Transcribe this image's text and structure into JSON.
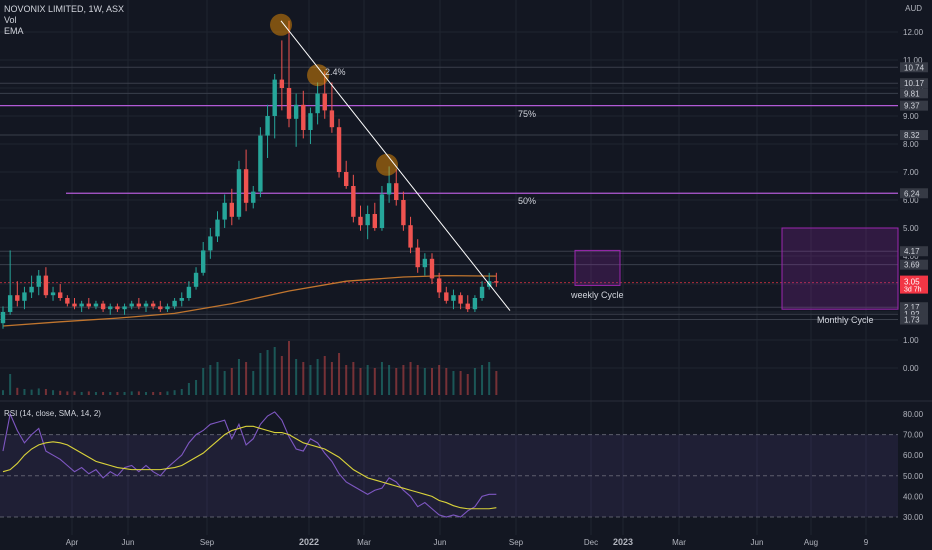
{
  "header": {
    "title": "NOVONIX LIMITED, 1W, ASX",
    "indicators": [
      "Vol",
      "EMA"
    ],
    "currency": "AUD"
  },
  "rsi_legend": "RSI (14, close, SMA, 14, 2)",
  "colors": {
    "background": "#131722",
    "grid": "#1f2430",
    "candle_up": "#26a69a",
    "candle_down": "#ef5350",
    "ema": "#c0752e",
    "level_line": "#b25ad6",
    "trend_line": "#ffffff",
    "rsi_line": "#7e57c2",
    "rsi_sma": "#d9d23a",
    "price_tag": "#f23645",
    "axis_text": "#b2b5be"
  },
  "chart_data": {
    "type": "candlestick",
    "timeframe": "1W",
    "x_ticks": [
      "Apr",
      "Jun",
      "Sep",
      "2022",
      "Mar",
      "Jun",
      "Sep",
      "Dec",
      "2023",
      "Mar",
      "Jun",
      "Aug",
      "9"
    ],
    "price_axis_ticks": [
      "12.00",
      "11.00",
      "10.00",
      "9.00",
      "8.00",
      "7.00",
      "6.00",
      "5.00",
      "4.00",
      "3.00",
      "2.00",
      "1.00",
      "0.00"
    ],
    "price_tags": [
      {
        "label": "10.74",
        "value": 10.74
      },
      {
        "label": "10.17",
        "value": 10.17
      },
      {
        "label": "9.81",
        "value": 9.81
      },
      {
        "label": "9.37",
        "value": 9.37
      },
      {
        "label": "8.32",
        "value": 8.32
      },
      {
        "label": "6.24",
        "value": 6.24
      },
      {
        "label": "4.17",
        "value": 4.17
      },
      {
        "label": "3.69",
        "value": 3.69
      },
      {
        "label": "2.17",
        "value": 2.17
      },
      {
        "label": "1.92",
        "value": 1.92
      },
      {
        "label": "1.73",
        "value": 1.73
      }
    ],
    "current_price": {
      "label": "3.05",
      "countdown": "3d 7h",
      "value": 3.05
    },
    "horizontal_levels": [
      {
        "value": 10.74,
        "color": "#3a3f4b"
      },
      {
        "value": 10.17,
        "color": "#3a3f4b"
      },
      {
        "value": 9.81,
        "color": "#3a3f4b"
      },
      {
        "value": 9.37,
        "color": "#b25ad6"
      },
      {
        "value": 8.32,
        "color": "#3a3f4b"
      },
      {
        "value": 6.24,
        "color": "#b25ad6"
      },
      {
        "value": 4.17,
        "color": "#3a3f4b"
      },
      {
        "value": 3.69,
        "color": "#3a3f4b"
      },
      {
        "value": 2.17,
        "color": "#3a3f4b"
      },
      {
        "value": 1.92,
        "color": "#3a3f4b"
      },
      {
        "value": 1.73,
        "color": "#3a3f4b"
      }
    ],
    "annotations": [
      {
        "text": "2.4%",
        "x": "Dec 2021",
        "y": 10.5
      },
      {
        "text": "75%",
        "x": "Jul 2022",
        "y": 8.9
      },
      {
        "text": "50%",
        "x": "Jul 2022",
        "y": 5.9
      },
      {
        "text": "weekly Cycle",
        "x": "Sep 2022",
        "y": 2.6
      },
      {
        "text": "Monthly Cycle",
        "x": "Jul 2023",
        "y": 1.95
      }
    ],
    "cycle_boxes": [
      {
        "name": "weekly Cycle",
        "x_start": "Sep 2022",
        "x_end": "Oct 2022",
        "y_low": 2.95,
        "y_high": 4.2
      },
      {
        "name": "Monthly Cycle",
        "x_start": "Jul 2023",
        "x_end": "Sep 2023",
        "y_low": 2.1,
        "y_high": 5.0
      }
    ],
    "trend_line": {
      "from": {
        "x": "Nov 2021",
        "y": 12.4
      },
      "to": {
        "x": "Aug 2022",
        "y": 2.05
      }
    },
    "pivot_highs": [
      {
        "x": "Nov 2021",
        "y": 12.4
      },
      {
        "x": "Jan 2022",
        "y": 10.6
      },
      {
        "x": "Mar 2022",
        "y": 7.4
      }
    ],
    "ohlc": [
      [
        1.6,
        2.2,
        1.4,
        2.0
      ],
      [
        2.0,
        4.2,
        1.9,
        2.6
      ],
      [
        2.6,
        3.1,
        2.2,
        2.4
      ],
      [
        2.4,
        2.9,
        2.1,
        2.7
      ],
      [
        2.7,
        3.3,
        2.5,
        2.9
      ],
      [
        2.9,
        3.5,
        2.6,
        3.3
      ],
      [
        3.3,
        3.6,
        2.5,
        2.6
      ],
      [
        2.6,
        2.9,
        2.4,
        2.7
      ],
      [
        2.7,
        3.0,
        2.4,
        2.5
      ],
      [
        2.5,
        2.6,
        2.2,
        2.3
      ],
      [
        2.3,
        2.5,
        2.1,
        2.2
      ],
      [
        2.2,
        2.4,
        2.0,
        2.3
      ],
      [
        2.3,
        2.5,
        2.1,
        2.2
      ],
      [
        2.2,
        2.4,
        2.1,
        2.3
      ],
      [
        2.3,
        2.4,
        2.0,
        2.1
      ],
      [
        2.1,
        2.3,
        1.9,
        2.2
      ],
      [
        2.2,
        2.3,
        2.0,
        2.1
      ],
      [
        2.1,
        2.3,
        1.9,
        2.2
      ],
      [
        2.2,
        2.4,
        2.1,
        2.3
      ],
      [
        2.3,
        2.5,
        2.1,
        2.2
      ],
      [
        2.2,
        2.4,
        2.0,
        2.3
      ],
      [
        2.3,
        2.4,
        2.1,
        2.2
      ],
      [
        2.2,
        2.4,
        2.0,
        2.1
      ],
      [
        2.1,
        2.3,
        2.0,
        2.2
      ],
      [
        2.2,
        2.5,
        2.1,
        2.4
      ],
      [
        2.4,
        2.7,
        2.2,
        2.5
      ],
      [
        2.5,
        3.1,
        2.4,
        2.9
      ],
      [
        2.9,
        3.6,
        2.8,
        3.4
      ],
      [
        3.4,
        4.5,
        3.3,
        4.2
      ],
      [
        4.2,
        5.0,
        3.9,
        4.7
      ],
      [
        4.7,
        5.6,
        4.5,
        5.3
      ],
      [
        5.3,
        6.2,
        5.0,
        5.9
      ],
      [
        5.9,
        6.4,
        5.1,
        5.4
      ],
      [
        5.4,
        7.4,
        5.3,
        7.1
      ],
      [
        7.1,
        7.8,
        5.6,
        5.9
      ],
      [
        5.9,
        6.5,
        5.7,
        6.3
      ],
      [
        6.3,
        8.6,
        6.1,
        8.3
      ],
      [
        8.3,
        9.4,
        7.5,
        9.0
      ],
      [
        9.0,
        10.5,
        8.2,
        10.3
      ],
      [
        10.3,
        11.7,
        9.2,
        10.0
      ],
      [
        10.0,
        12.4,
        8.6,
        8.9
      ],
      [
        8.9,
        9.8,
        7.9,
        9.4
      ],
      [
        9.4,
        9.9,
        8.2,
        8.5
      ],
      [
        8.5,
        9.3,
        8.0,
        9.1
      ],
      [
        9.1,
        10.2,
        8.7,
        9.8
      ],
      [
        9.8,
        10.6,
        8.9,
        9.2
      ],
      [
        9.2,
        10.2,
        8.4,
        8.6
      ],
      [
        8.6,
        8.9,
        6.8,
        7.0
      ],
      [
        7.0,
        7.4,
        6.4,
        6.5
      ],
      [
        6.5,
        6.9,
        5.2,
        5.4
      ],
      [
        5.4,
        5.8,
        4.9,
        5.1
      ],
      [
        5.1,
        5.8,
        4.6,
        5.5
      ],
      [
        5.5,
        5.9,
        4.9,
        5.0
      ],
      [
        5.0,
        6.5,
        4.9,
        6.2
      ],
      [
        6.2,
        7.2,
        5.9,
        6.6
      ],
      [
        6.6,
        7.1,
        5.8,
        6.0
      ],
      [
        6.0,
        6.3,
        4.9,
        5.1
      ],
      [
        5.1,
        5.4,
        4.1,
        4.3
      ],
      [
        4.3,
        4.6,
        3.4,
        3.6
      ],
      [
        3.6,
        4.1,
        3.3,
        3.9
      ],
      [
        3.9,
        4.1,
        3.0,
        3.2
      ],
      [
        3.2,
        3.4,
        2.5,
        2.7
      ],
      [
        2.7,
        2.9,
        2.3,
        2.4
      ],
      [
        2.4,
        2.8,
        2.1,
        2.6
      ],
      [
        2.6,
        2.7,
        2.1,
        2.3
      ],
      [
        2.3,
        2.6,
        2.0,
        2.1
      ],
      [
        2.1,
        2.6,
        2.0,
        2.5
      ],
      [
        2.5,
        3.1,
        2.4,
        2.9
      ],
      [
        2.9,
        3.4,
        2.8,
        3.1
      ],
      [
        3.1,
        3.4,
        2.9,
        3.05
      ]
    ],
    "ema_line": [
      [
        0,
        1.5
      ],
      [
        8,
        1.65
      ],
      [
        16,
        1.78
      ],
      [
        24,
        1.95
      ],
      [
        32,
        2.3
      ],
      [
        40,
        2.75
      ],
      [
        48,
        3.1
      ],
      [
        56,
        3.25
      ],
      [
        62,
        3.3
      ],
      [
        69,
        3.28
      ]
    ],
    "volume": [
      0.08,
      0.35,
      0.12,
      0.1,
      0.09,
      0.11,
      0.1,
      0.08,
      0.07,
      0.06,
      0.06,
      0.05,
      0.06,
      0.05,
      0.05,
      0.05,
      0.05,
      0.05,
      0.06,
      0.06,
      0.05,
      0.05,
      0.05,
      0.06,
      0.08,
      0.1,
      0.2,
      0.25,
      0.45,
      0.5,
      0.55,
      0.4,
      0.45,
      0.6,
      0.55,
      0.4,
      0.7,
      0.75,
      0.8,
      0.65,
      0.9,
      0.6,
      0.55,
      0.5,
      0.6,
      0.65,
      0.55,
      0.7,
      0.5,
      0.55,
      0.45,
      0.5,
      0.45,
      0.55,
      0.5,
      0.45,
      0.5,
      0.55,
      0.5,
      0.45,
      0.45,
      0.5,
      0.45,
      0.4,
      0.4,
      0.35,
      0.45,
      0.5,
      0.55,
      0.4
    ],
    "rsi": {
      "axis_ticks": [
        "80.00",
        "70.00",
        "60.00",
        "50.00",
        "40.00",
        "30.00"
      ],
      "upper_band": 70,
      "lower_band": 30,
      "values": [
        62,
        80,
        72,
        66,
        70,
        73,
        62,
        60,
        58,
        55,
        52,
        54,
        51,
        53,
        49,
        52,
        50,
        54,
        55,
        52,
        55,
        52,
        50,
        54,
        57,
        60,
        66,
        70,
        72,
        75,
        76,
        77,
        68,
        75,
        65,
        68,
        75,
        79,
        81,
        77,
        69,
        63,
        62,
        68,
        66,
        61,
        57,
        51,
        47,
        45,
        43,
        41,
        43,
        44,
        49,
        47,
        43,
        40,
        35,
        37,
        34,
        31,
        30,
        31,
        30,
        33,
        35,
        40,
        41,
        41
      ],
      "sma": [
        52,
        53,
        56,
        60,
        63,
        65,
        66,
        66.5,
        66,
        65,
        63,
        61,
        59,
        57,
        56,
        55,
        54,
        53.5,
        53,
        53,
        53,
        53,
        53,
        53.5,
        54,
        55,
        57,
        59,
        61,
        64,
        67,
        70,
        72,
        73,
        74,
        74,
        73,
        72,
        71,
        71,
        70,
        68,
        66,
        65,
        64,
        63,
        61,
        59,
        56,
        53,
        51,
        49,
        48,
        47,
        46,
        45,
        44,
        43,
        42,
        41,
        40,
        38,
        37,
        35.5,
        34.5,
        34,
        34,
        34,
        34,
        34.5
      ]
    }
  }
}
